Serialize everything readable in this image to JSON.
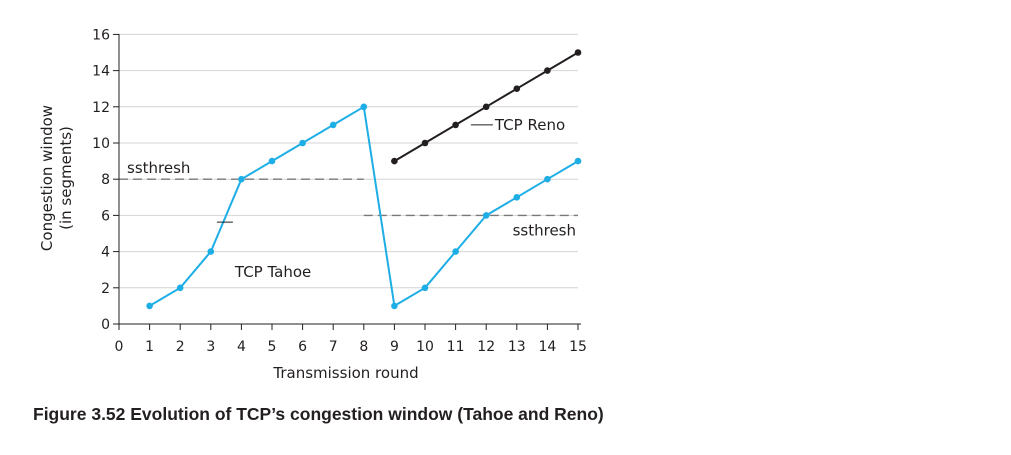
{
  "caption": "Figure 3.52 Evolution of TCP’s congestion window (Tahoe and Reno)",
  "chart_data": {
    "type": "line",
    "xlabel": "Transmission round",
    "ylabel": [
      "Congestion window",
      "(in segments)"
    ],
    "xlim": [
      0,
      15
    ],
    "ylim": [
      0,
      16
    ],
    "x_ticks": [
      0,
      1,
      2,
      3,
      4,
      5,
      6,
      7,
      8,
      9,
      10,
      11,
      12,
      13,
      14,
      15
    ],
    "y_ticks": [
      0,
      2,
      4,
      6,
      8,
      10,
      12,
      14,
      16
    ],
    "grid": "horizontal",
    "series": [
      {
        "name": "TCP Tahoe",
        "color": "#1eaee6",
        "x": [
          1,
          2,
          3,
          4,
          5,
          6,
          7,
          8,
          9,
          10,
          11,
          12,
          13,
          14,
          15
        ],
        "y": [
          1,
          2,
          4,
          8,
          9,
          10,
          11,
          12,
          1,
          2,
          4,
          6,
          7,
          8,
          9
        ]
      },
      {
        "name": "TCP Reno",
        "color": "#231f20",
        "x": [
          9,
          10,
          11,
          12,
          13,
          14,
          15
        ],
        "y": [
          9,
          10,
          11,
          12,
          13,
          14,
          15
        ]
      }
    ],
    "thresholds": [
      {
        "label": "ssthresh",
        "y": 8,
        "x_start": 0,
        "x_end": 8
      },
      {
        "label": "ssthresh",
        "y": 6,
        "x_start": 8,
        "x_end": 15
      }
    ]
  }
}
